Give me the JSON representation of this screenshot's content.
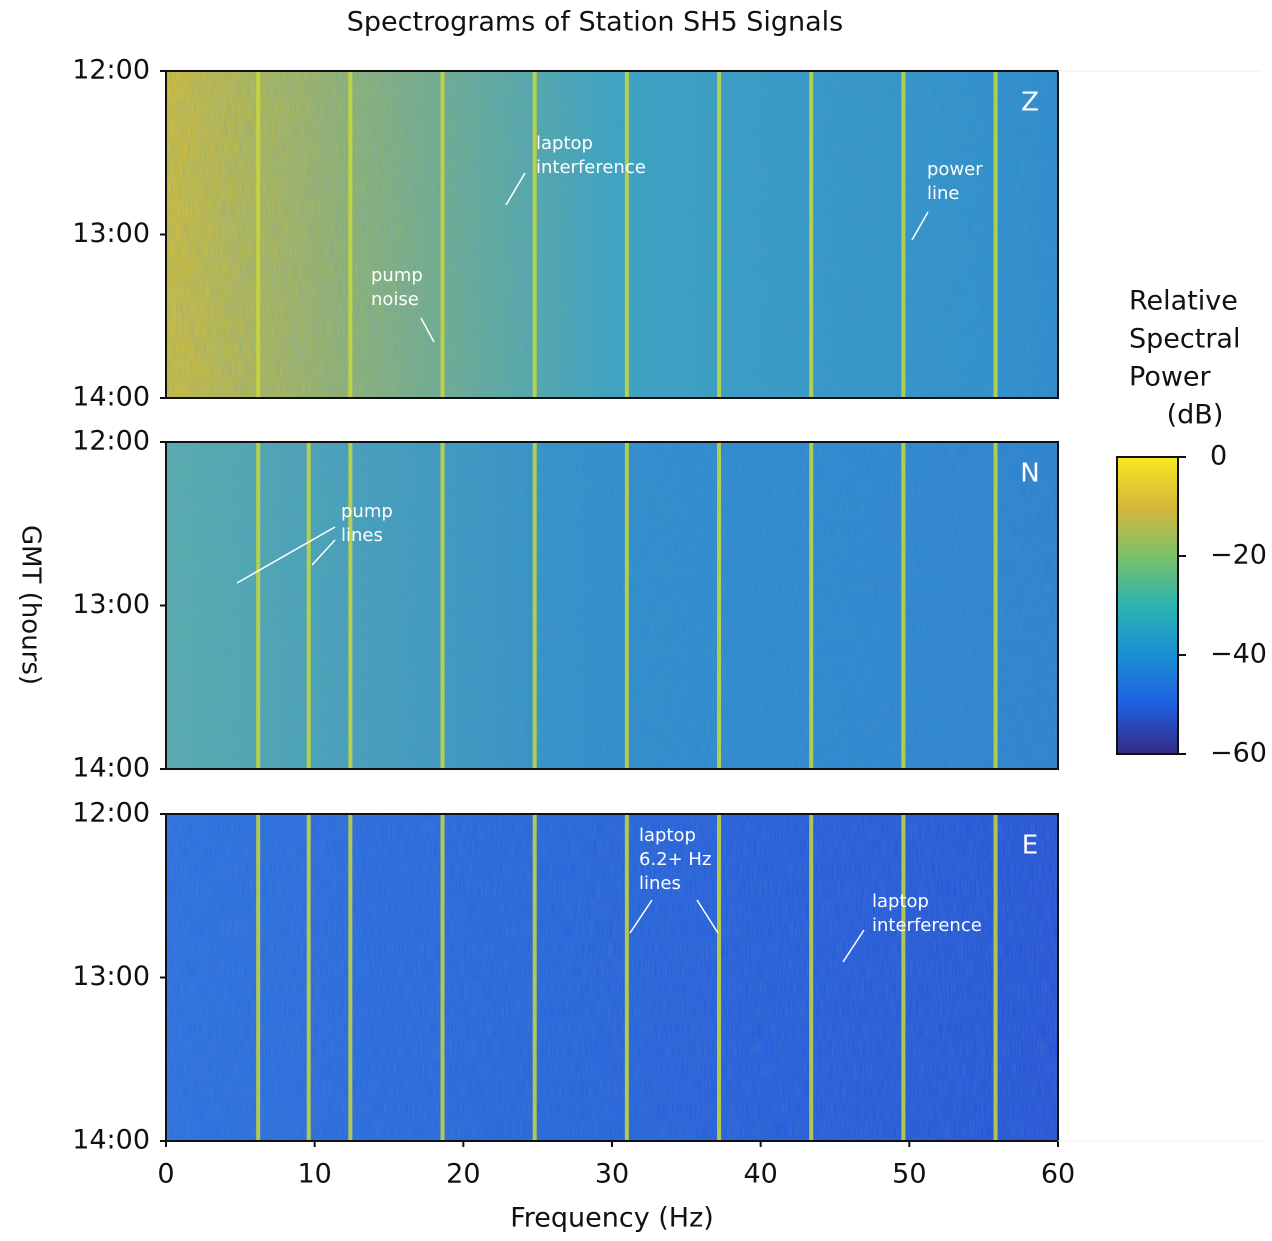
{
  "chart_data": {
    "type": "spectrogram",
    "title": "Spectrograms of Station SH5 Signals",
    "x_label": "Frequency (Hz)",
    "y_label": "GMT (hours)",
    "xlim": [
      0,
      60
    ],
    "xticks": [
      0,
      10,
      20,
      30,
      40,
      50,
      60
    ],
    "ylim": [
      12,
      14
    ],
    "yticks": [
      {
        "value": 12,
        "label": "12:00"
      },
      {
        "value": 13,
        "label": "13:00"
      },
      {
        "value": 14,
        "label": "14:00"
      }
    ],
    "line_color": "#c8d83a",
    "panels": [
      {
        "name": "Z",
        "background": [
          "#d8c030",
          "#3aa6c0",
          "#2a8ccc"
        ],
        "line_frequencies": [
          6.2,
          12.4,
          18.6,
          24.8,
          31,
          37.2,
          43.4,
          49.6,
          55.8
        ],
        "annotations": [
          [
            "laptop",
            "interference"
          ],
          [
            "pump",
            "noise"
          ],
          [
            "power",
            "line"
          ]
        ]
      },
      {
        "name": "N",
        "background": [
          "#5ab0a8",
          "#2c8ecc",
          "#2a82d0"
        ],
        "line_frequencies": [
          6.2,
          9.6,
          12.4,
          18.6,
          24.8,
          31,
          37.2,
          43.4,
          49.6,
          55.8
        ],
        "annotations": [
          [
            "pump",
            "lines"
          ]
        ]
      },
      {
        "name": "E",
        "background": [
          "#2a6ee0",
          "#2560dc",
          "#2450d8"
        ],
        "line_frequencies": [
          6.2,
          9.6,
          12.4,
          18.6,
          24.8,
          31,
          37.2,
          43.4,
          49.6,
          55.8
        ],
        "annotations": [
          [
            "laptop",
            "6.2+ Hz",
            "lines"
          ],
          [
            "laptop",
            "interference"
          ]
        ]
      }
    ],
    "colorbar": {
      "title": [
        "Relative",
        "Spectral",
        "Power",
        "(dB)"
      ],
      "lim": [
        -60,
        0
      ],
      "ticks": [
        0,
        {
          "value": -20,
          "label": "−20"
        },
        {
          "value": -40,
          "label": "−40"
        },
        {
          "value": -60,
          "label": "−60"
        }
      ],
      "colormap": [
        "#352a87",
        "#1f5fe0",
        "#1a8fd4",
        "#2bb3b0",
        "#7cc06a",
        "#d7b83a",
        "#f9e721"
      ]
    }
  }
}
